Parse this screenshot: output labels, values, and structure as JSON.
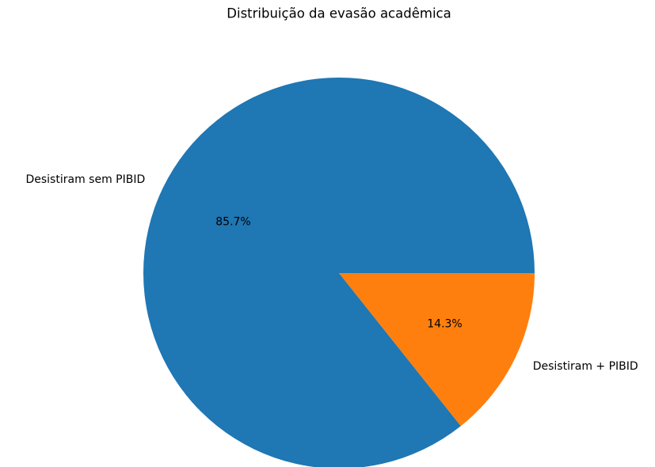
{
  "chart_data": {
    "type": "pie",
    "title": "Distribuição da evasão acadêmica",
    "categories": [
      "Desistiram sem PIBID",
      "Desistiram + PIBID"
    ],
    "values": [
      85.7,
      14.3
    ],
    "value_labels": [
      "85.7%",
      "14.3%"
    ],
    "colors": [
      "#1f77b4",
      "#ff7f0e"
    ],
    "startangle": 0,
    "counterclock": true
  }
}
